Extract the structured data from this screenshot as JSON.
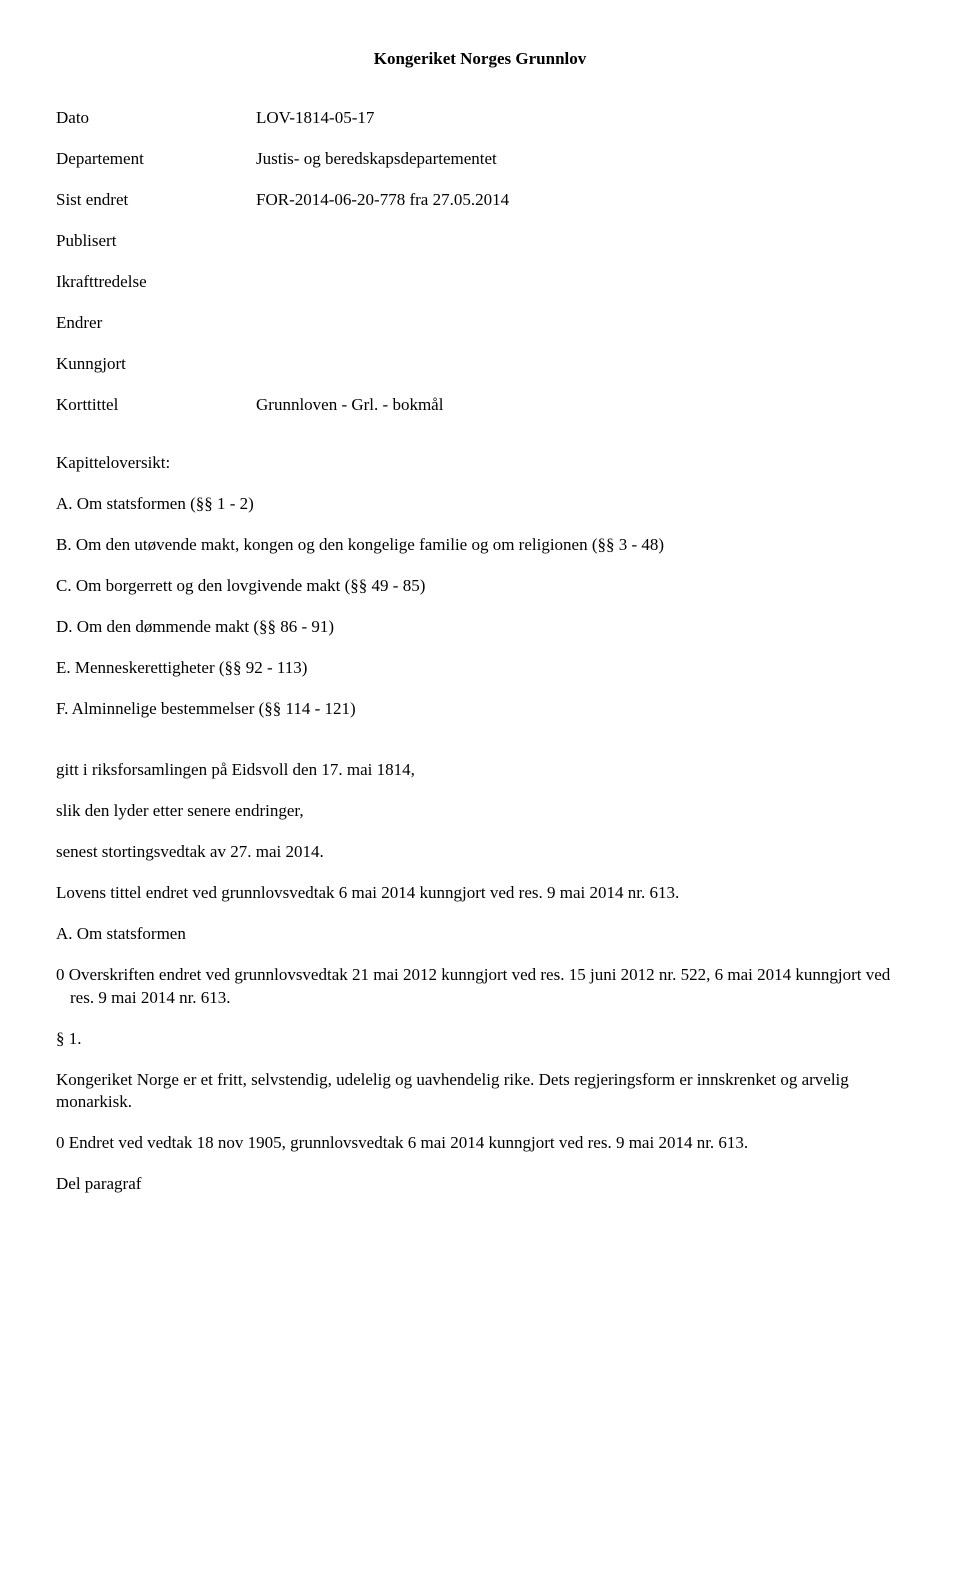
{
  "doc": {
    "title": "Kongeriket Norges Grunnlov"
  },
  "meta": {
    "rows": [
      {
        "label": "Dato",
        "value": "LOV-1814-05-17"
      },
      {
        "label": "Departement",
        "value": "Justis- og beredskapsdepartementet"
      },
      {
        "label": "Sist endret",
        "value": "FOR-2014-06-20-778 fra 27.05.2014"
      }
    ],
    "publisert": "Publisert",
    "ikrafttredelse": "Ikrafttredelse",
    "endrer": "Endrer",
    "kunngjort": "Kunngjort",
    "korttittel_row": {
      "label": "Korttittel",
      "value": "Grunnloven - Grl. - bokmål"
    }
  },
  "toc": {
    "heading": "Kapitteloversikt:",
    "items": [
      "A. Om statsformen (§§ 1 - 2)",
      "B. Om den utøvende makt, kongen og den kongelige familie og om religionen (§§ 3 - 48)",
      "C. Om borgerrett og den lovgivende makt (§§ 49 - 85)",
      "D. Om den dømmende makt (§§ 86 - 91)",
      "E. Menneskerettigheter (§§ 92 - 113)",
      "F. Alminnelige bestemmelser (§§ 114 - 121)"
    ]
  },
  "body": {
    "p1": "gitt i riksforsamlingen på Eidsvoll den 17. mai 1814,",
    "p2": "slik den lyder etter senere endringer,",
    "p3": "senest stortingsvedtak av 27. mai 2014.",
    "p4": "Lovens tittel endret ved grunnlovsvedtak 6 mai 2014 kunngjort ved res. 9 mai 2014 nr. 613.",
    "section_a": "A. Om statsformen",
    "note0": "0 Overskriften endret ved grunnlovsvedtak 21 mai 2012 kunngjort ved res. 15 juni 2012 nr. 522, 6 mai 2014 kunngjort ved res. 9 mai 2014 nr. 613.",
    "s1_heading": "§ 1.",
    "s1_text": "Kongeriket Norge er et fritt, selvstendig, udelelig og uavhendelig rike. Dets regjeringsform er innskrenket og arvelig monarkisk.",
    "s1_note": "0 Endret ved vedtak 18 nov 1905, grunnlovsvedtak 6 mai 2014 kunngjort ved res. 9 mai 2014 nr. 613.",
    "del_para": "​Del paragraf"
  }
}
